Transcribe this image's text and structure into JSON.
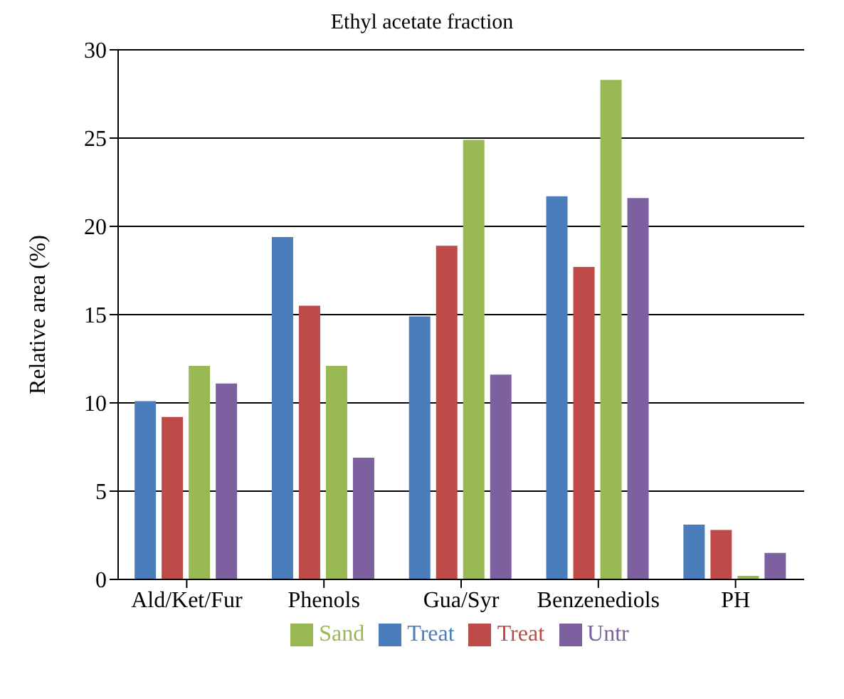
{
  "chart_data": {
    "type": "bar",
    "title": "Ethyl acetate fraction",
    "ylabel": "Relative area (%)",
    "categories": [
      "Ald/Ket/Fur",
      "Phenols",
      "Gua/Syr",
      "Benzenediols",
      "PH"
    ],
    "series": [
      {
        "name": "Treat",
        "color": "#4a7ebb",
        "values": [
          10.1,
          19.4,
          14.9,
          21.7,
          3.1
        ]
      },
      {
        "name": "Treat",
        "color": "#be4b48",
        "values": [
          9.2,
          15.5,
          18.9,
          17.7,
          2.8
        ]
      },
      {
        "name": "Sand",
        "color": "#98b954",
        "values": [
          12.1,
          12.1,
          24.9,
          28.3,
          0.2
        ]
      },
      {
        "name": "Untr",
        "color": "#7d60a0",
        "values": [
          11.1,
          6.9,
          11.6,
          21.6,
          1.5
        ]
      }
    ],
    "ylim": [
      0,
      30
    ],
    "yticks": [
      0,
      5,
      10,
      15,
      20,
      25,
      30
    ],
    "grid": "y",
    "legend": "bottom"
  }
}
